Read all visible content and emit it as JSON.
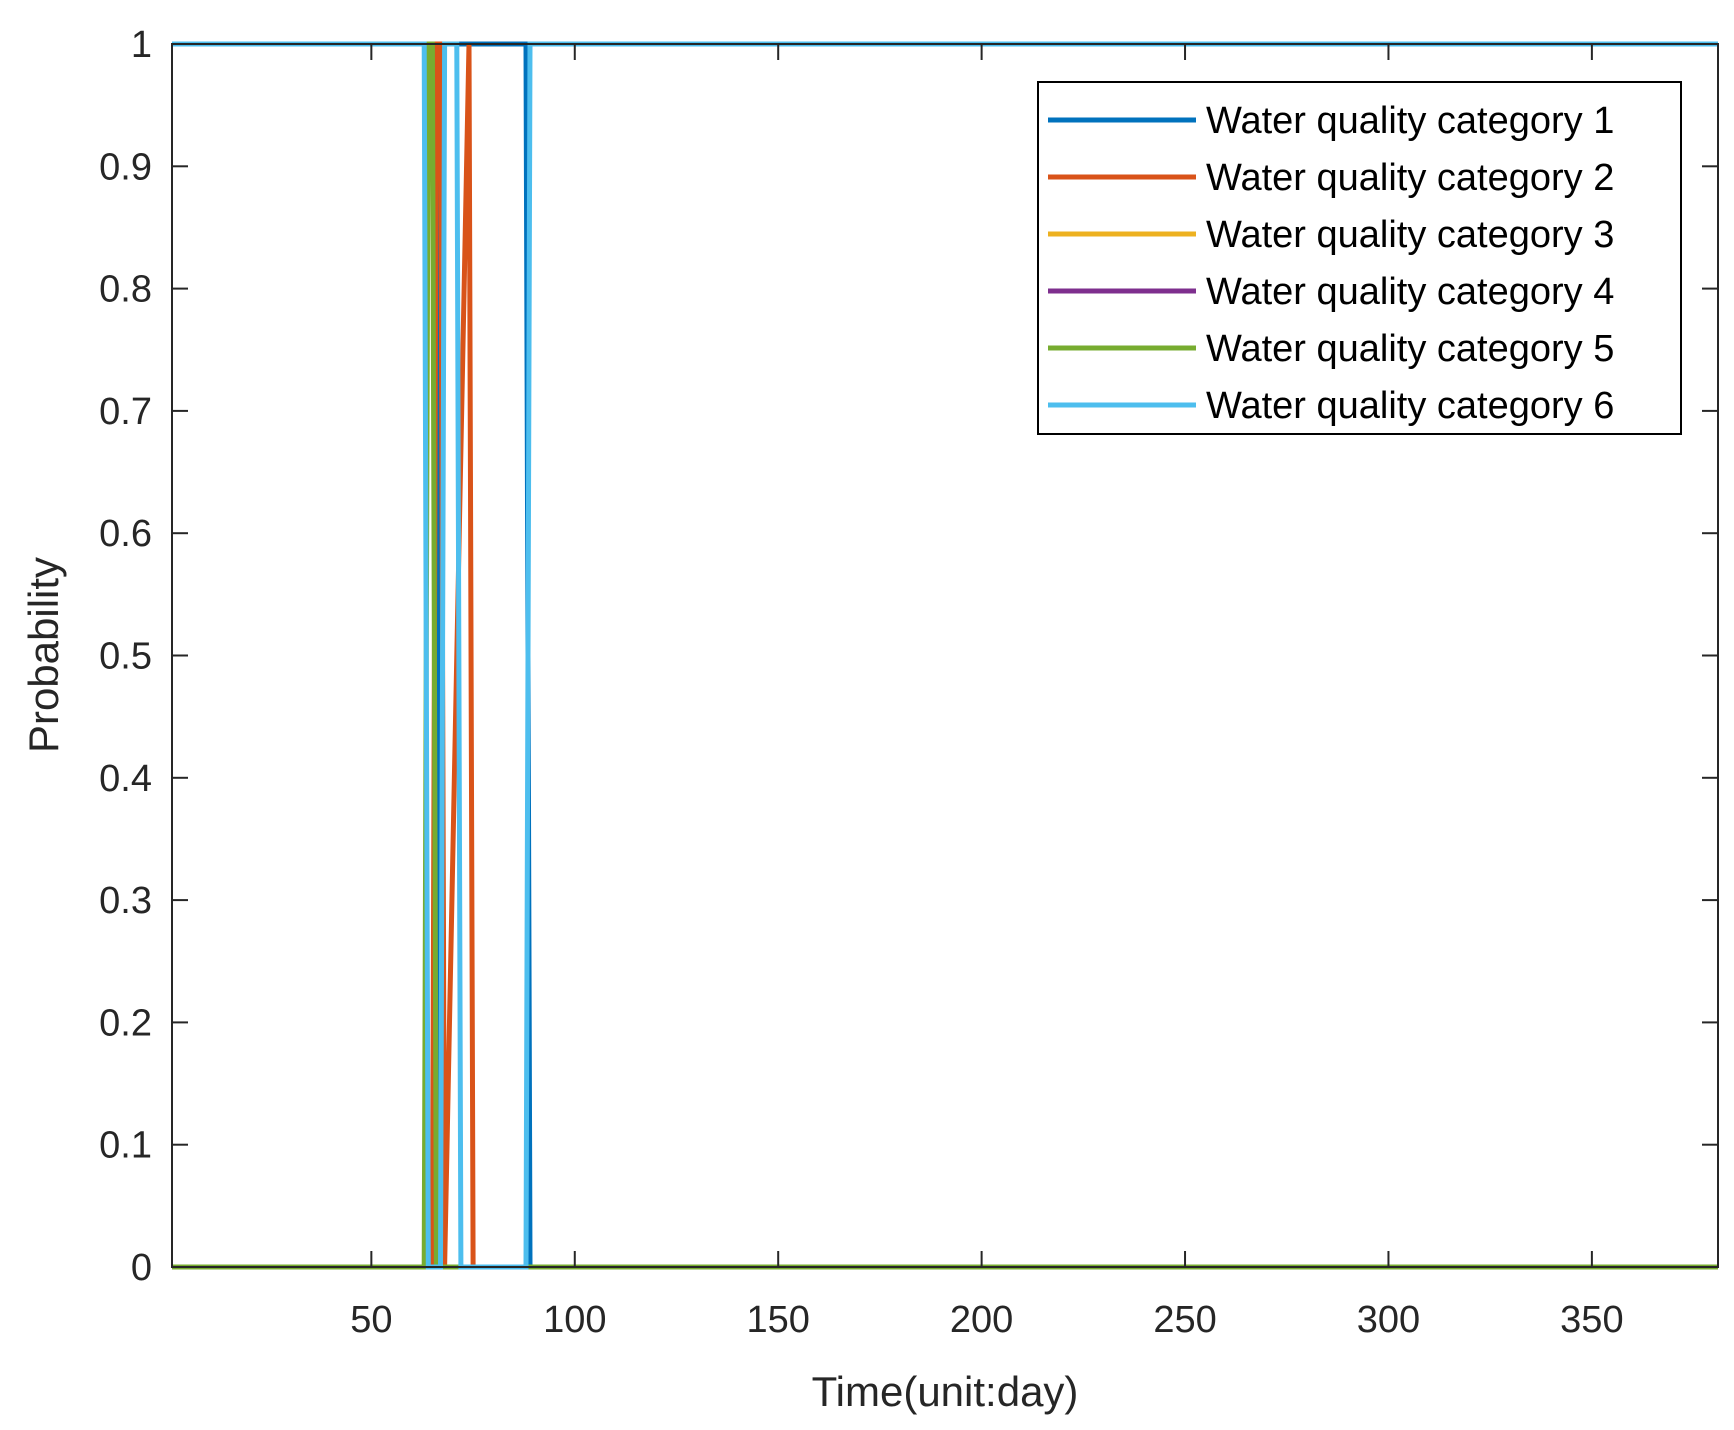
{
  "chart_data": {
    "type": "line",
    "title": "",
    "xlabel": "Time(unit:day)",
    "ylabel": "Probability",
    "xlim": [
      1,
      381
    ],
    "ylim": [
      0,
      1
    ],
    "xticks": [
      50,
      100,
      150,
      200,
      250,
      300,
      350
    ],
    "xtick_labels": [
      "50",
      "100",
      "150",
      "200",
      "250",
      "300",
      "350"
    ],
    "yticks": [
      0,
      0.1,
      0.2,
      0.3,
      0.4,
      0.5,
      0.6,
      0.7,
      0.8,
      0.9,
      1
    ],
    "ytick_labels": [
      "0",
      "0.1",
      "0.2",
      "0.3",
      "0.4",
      "0.5",
      "0.6",
      "0.7",
      "0.8",
      "0.9",
      "1"
    ],
    "grid": false,
    "legend_position": "top-right",
    "series": [
      {
        "name": "Water quality category 1",
        "color": "#0072BD",
        "x": [
          1,
          66,
          67,
          71,
          72,
          88,
          89,
          381
        ],
        "y": [
          0,
          0,
          1,
          1,
          1,
          1,
          0,
          0
        ]
      },
      {
        "name": "Water quality category 2",
        "color": "#D95319",
        "x": [
          1,
          65,
          66,
          67,
          68,
          74,
          75,
          381
        ],
        "y": [
          0,
          0,
          1,
          1,
          0,
          1,
          0,
          0
        ]
      },
      {
        "name": "Water quality category 3",
        "color": "#EDB120",
        "x": [
          1,
          381
        ],
        "y": [
          0,
          0
        ]
      },
      {
        "name": "Water quality category 4",
        "color": "#7E2F8E",
        "x": [
          1,
          381
        ],
        "y": [
          0,
          0
        ]
      },
      {
        "name": "Water quality category 5",
        "color": "#77AC30",
        "x": [
          1,
          63,
          64,
          65,
          66,
          381
        ],
        "y": [
          0,
          0,
          1,
          1,
          0,
          0
        ]
      },
      {
        "name": "Water quality category 6",
        "color": "#4DBEEE",
        "x": [
          1,
          63,
          64,
          67,
          68,
          71,
          72,
          73,
          74,
          88,
          89,
          381
        ],
        "y": [
          1,
          1,
          0,
          0,
          1,
          1,
          0,
          0,
          0,
          0,
          1,
          1
        ]
      }
    ]
  }
}
